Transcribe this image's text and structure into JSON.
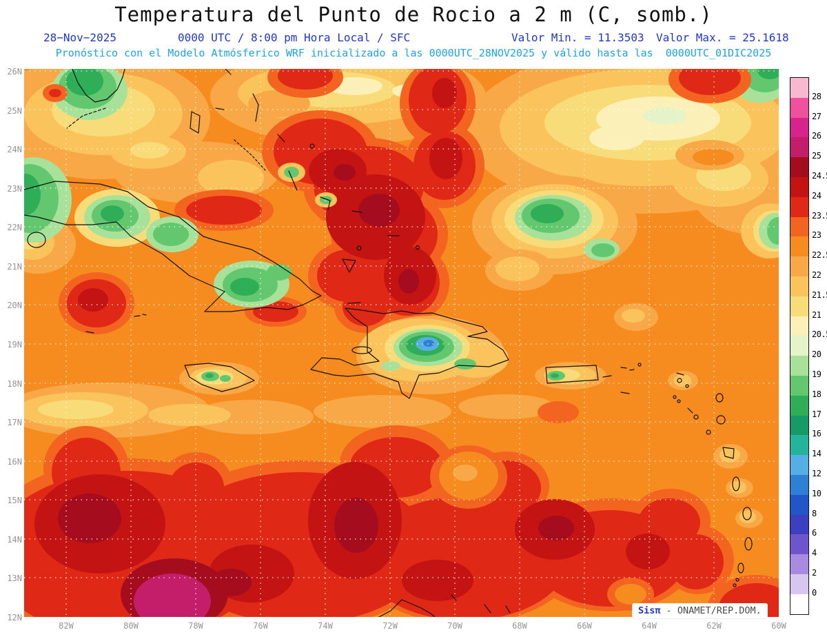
{
  "title": "Temperatura del Punto de Rocio a 2 m (C, somb.)",
  "subtitle": {
    "date": "28−Nov−2025",
    "time": "0000 UTC / 8:00 pm Hora Local / SFC",
    "min_label": "Valor Min. = 11.3503",
    "max_label": "Valor Max. = 25.1618",
    "model_line": "Pronóstico con el Modelo Atmósferico WRF inicializado a las 0000UTC_28NOV2025 y válido hasta las  0000UTC_01DIC2025"
  },
  "axes": {
    "lat_labels": [
      "26N",
      "25N",
      "24N",
      "23N",
      "22N",
      "21N",
      "20N",
      "19N",
      "18N",
      "17N",
      "16N",
      "15N",
      "14N",
      "13N",
      "12N"
    ],
    "lon_labels": [
      "82W",
      "80W",
      "78W",
      "76W",
      "74W",
      "72W",
      "70W",
      "68W",
      "66W",
      "64W",
      "62W",
      "60W"
    ]
  },
  "colorbar": {
    "units": "C",
    "segments": [
      {
        "color": "#F9B7D0",
        "label_below": "28"
      },
      {
        "color": "#F0519E",
        "label_below": "27"
      },
      {
        "color": "#D6248C",
        "label_below": "26"
      },
      {
        "color": "#C41E6B",
        "label_below": "25"
      },
      {
        "color": "#A50D1E",
        "label_below": "24.5"
      },
      {
        "color": "#C41313",
        "label_below": "24"
      },
      {
        "color": "#E02817",
        "label_below": "23.5"
      },
      {
        "color": "#F2641F",
        "label_below": "23"
      },
      {
        "color": "#F68C1F",
        "label_below": "22.5"
      },
      {
        "color": "#F9A848",
        "label_below": "22"
      },
      {
        "color": "#FBC35C",
        "label_below": "21.5"
      },
      {
        "color": "#F8DC7A",
        "label_below": "21"
      },
      {
        "color": "#FBF0B8",
        "label_below": "20.5"
      },
      {
        "color": "#E4F4C8",
        "label_below": "20"
      },
      {
        "color": "#A8E29A",
        "label_below": "19"
      },
      {
        "color": "#63C76F",
        "label_below": "18"
      },
      {
        "color": "#2FAE57",
        "label_below": "17"
      },
      {
        "color": "#169A68",
        "label_below": "16"
      },
      {
        "color": "#25B49B",
        "label_below": "14"
      },
      {
        "color": "#55AEE4",
        "label_below": "12"
      },
      {
        "color": "#2E7FD6",
        "label_below": "10"
      },
      {
        "color": "#2155C8",
        "label_below": "8"
      },
      {
        "color": "#3B3FC0",
        "label_below": "6"
      },
      {
        "color": "#6F54CE",
        "label_below": "4"
      },
      {
        "color": "#A88BE0",
        "label_below": "2"
      },
      {
        "color": "#D6C6F0",
        "label_below": "0"
      },
      {
        "color": "#FFFFFF",
        "label_below": ""
      }
    ]
  },
  "watermark": {
    "brand": "Sisπ",
    "source": " - ONAMET/REP.DOM."
  }
}
